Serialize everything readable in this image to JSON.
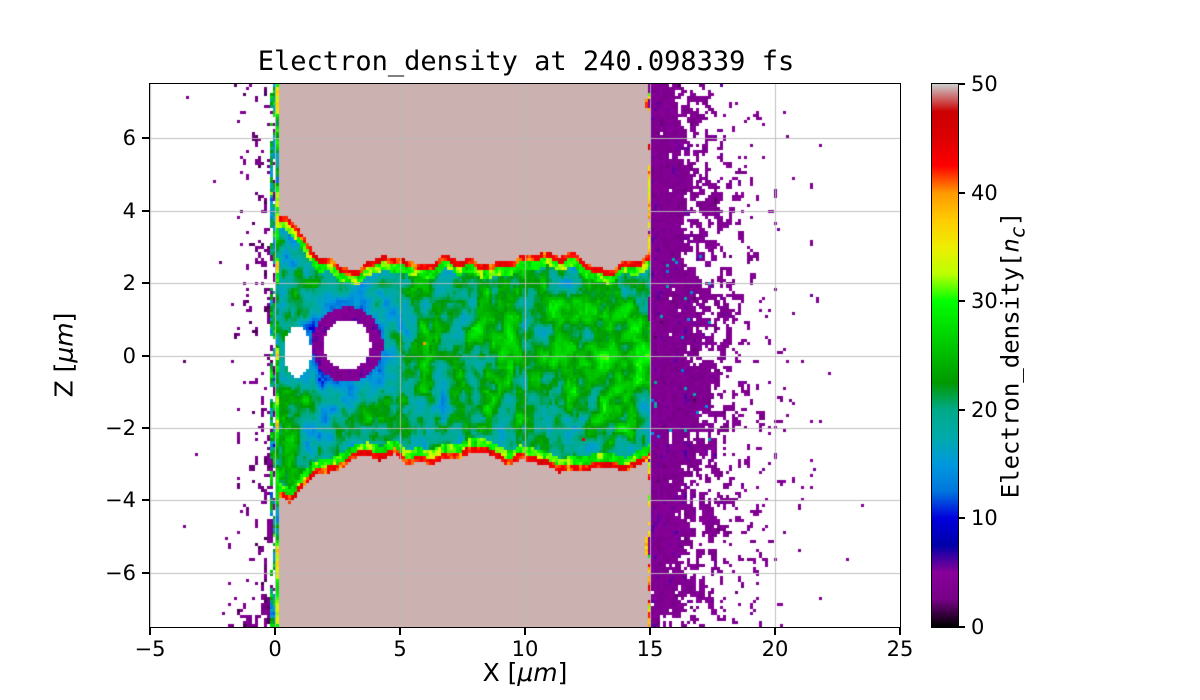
{
  "chart_data": {
    "type": "heatmap",
    "title": "Electron_density at 240.098339 fs",
    "xlabel": {
      "prefix": "X [",
      "math": "μm",
      "suffix": "]"
    },
    "ylabel": {
      "prefix": "Z [",
      "math": "μm",
      "suffix": "]"
    },
    "xlim": [
      -5,
      25
    ],
    "ylim": [
      -7.5,
      7.5
    ],
    "xticks": {
      "values": [
        -5,
        0,
        5,
        10,
        15,
        20,
        25
      ],
      "labels": [
        "−5",
        "0",
        "5",
        "10",
        "15",
        "20",
        "25"
      ]
    },
    "yticks": {
      "values": [
        -6,
        -4,
        -2,
        0,
        2,
        4,
        6
      ],
      "labels": [
        "−6",
        "−4",
        "−2",
        "0",
        "2",
        "4",
        "6"
      ]
    },
    "grid": true,
    "colorbar": {
      "label": {
        "prefix": "Electron_density[",
        "var": "n",
        "sub": "c",
        "suffix": "]"
      },
      "vmin": 0,
      "vmax": 50,
      "ticks": {
        "values": [
          0,
          10,
          20,
          30,
          40,
          50
        ],
        "labels": [
          "0",
          "10",
          "20",
          "30",
          "40",
          "50"
        ]
      },
      "colormap": "nipy_spectral"
    },
    "features": {
      "target_slab": {
        "x_range": [
          0,
          15
        ],
        "density": 50
      },
      "bored_channel": {
        "x_start": 0.15,
        "z_halfwidth": 2.6,
        "density_range": [
          8,
          36
        ]
      },
      "rear_plasma_spray": {
        "x_range": [
          15,
          25
        ],
        "density_range": [
          0,
          8
        ]
      },
      "front_plasma_blowoff": {
        "x_range": [
          -5,
          0
        ],
        "density_range": [
          0,
          5
        ]
      }
    }
  }
}
